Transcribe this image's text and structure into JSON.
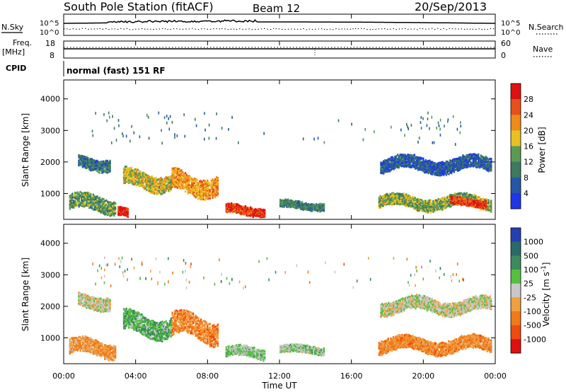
{
  "header": {
    "station": "South Pole Station (fitACF)",
    "beam": "Beam 12",
    "date": "20/Sep/2013"
  },
  "strips": {
    "nsky_label": "N.Sky",
    "nsearch_label": "N.Search",
    "noise_ticks": [
      "10^5",
      "10^0"
    ],
    "freq_label_1": "Freq.",
    "freq_label_2": "[MHz]",
    "freq_ticks": [
      "18",
      "8"
    ],
    "nave_label": "Nave",
    "nave_ticks": [
      "60",
      "0"
    ],
    "cpid_label": "CPID",
    "cpid_value": "normal (fast) 151 RF"
  },
  "x_axis": {
    "label": "Time UT",
    "ticks": [
      "00:00",
      "04:00",
      "08:00",
      "12:00",
      "16:00",
      "20:00",
      "00:00"
    ]
  },
  "colors": {
    "power_scale": [
      "#1f36e8",
      "#2557a8",
      "#3d7a5f",
      "#5a9a55",
      "#e8c020",
      "#f08a18",
      "#e8501a",
      "#e01010"
    ],
    "velocity_scale": [
      "#e01010",
      "#f04a10",
      "#f07a18",
      "#f0a040",
      "#c8c8c8",
      "#55c040",
      "#3d8a5f",
      "#2a6a6a",
      "#2440b0"
    ]
  },
  "chart_data": [
    {
      "type": "heatmap",
      "title": "",
      "xlabel": "Time UT",
      "ylabel": "Slant Range [km]",
      "ylim": [
        180,
        4600
      ],
      "y_ticks": [
        1000,
        2000,
        3000,
        4000
      ],
      "x_range_hours": [
        0,
        24
      ],
      "colorbar": {
        "label": "Power [dB]",
        "ticks": [
          "28",
          "24",
          "20",
          "16",
          "12",
          "8",
          "4"
        ],
        "range": [
          0,
          30
        ]
      },
      "features": [
        {
          "t_start": 0.3,
          "t_end": 2.9,
          "range_center": 650,
          "range_width": 450,
          "value": 12
        },
        {
          "t_start": 0.8,
          "t_end": 2.6,
          "range_center": 1950,
          "range_width": 350,
          "value": 8
        },
        {
          "t_start": 3.3,
          "t_end": 6.0,
          "range_center": 1400,
          "range_width": 500,
          "value": 16
        },
        {
          "t_start": 3.0,
          "t_end": 3.6,
          "range_center": 350,
          "range_width": 250,
          "value": 28
        },
        {
          "t_start": 6.0,
          "t_end": 8.6,
          "range_center": 1300,
          "range_width": 600,
          "value": 20
        },
        {
          "t_start": 9.0,
          "t_end": 11.2,
          "range_center": 450,
          "range_width": 250,
          "value": 26
        },
        {
          "t_start": 12.0,
          "t_end": 14.5,
          "range_center": 600,
          "range_width": 200,
          "value": 10
        },
        {
          "t_start": 17.6,
          "t_end": 23.8,
          "range_center": 1900,
          "range_width": 400,
          "value": 6
        },
        {
          "t_start": 17.5,
          "t_end": 23.8,
          "range_center": 700,
          "range_width": 350,
          "value": 14
        },
        {
          "t_start": 21.5,
          "t_end": 23.5,
          "range_center": 700,
          "range_width": 200,
          "value": 26
        }
      ]
    },
    {
      "type": "heatmap",
      "title": "",
      "xlabel": "Time UT",
      "ylabel": "Slant Range [km]",
      "ylim": [
        180,
        4600
      ],
      "y_ticks": [
        1000,
        2000,
        3000,
        4000
      ],
      "x_range_hours": [
        0,
        24
      ],
      "colorbar": {
        "label": "Velocity [m s^-1]",
        "ticks": [
          "1000",
          "500",
          "100",
          "25",
          "-25",
          "-100",
          "-500",
          "-1000"
        ],
        "range": [
          -1000,
          1000
        ]
      },
      "features": [
        {
          "t_start": 0.3,
          "t_end": 2.9,
          "range_center": 650,
          "range_width": 450,
          "value": -300
        },
        {
          "t_start": 0.8,
          "t_end": 2.6,
          "range_center": 2150,
          "range_width": 400,
          "value": 0
        },
        {
          "t_start": 3.3,
          "t_end": 6.0,
          "range_center": 1400,
          "range_width": 600,
          "value": 300
        },
        {
          "t_start": 6.0,
          "t_end": 8.6,
          "range_center": 1300,
          "range_width": 700,
          "value": -400
        },
        {
          "t_start": 9.0,
          "t_end": 11.2,
          "range_center": 500,
          "range_width": 300,
          "value": 150
        },
        {
          "t_start": 12.0,
          "t_end": 14.5,
          "range_center": 600,
          "range_width": 200,
          "value": 120
        },
        {
          "t_start": 17.6,
          "t_end": 23.8,
          "range_center": 2000,
          "range_width": 400,
          "value": 0
        },
        {
          "t_start": 17.5,
          "t_end": 23.8,
          "range_center": 750,
          "range_width": 400,
          "value": -350
        }
      ]
    }
  ]
}
